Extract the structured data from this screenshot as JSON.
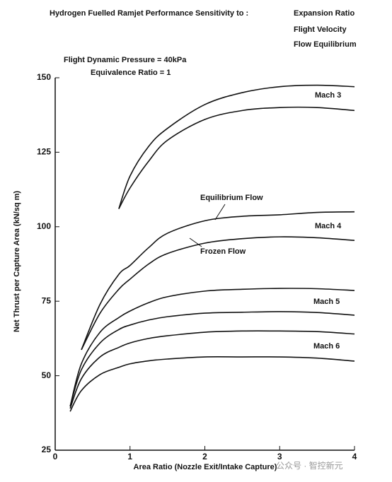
{
  "chart_data": {
    "type": "line",
    "title": "Hydrogen Fuelled Ramjet Performance  Sensitivity to :",
    "subtitle_lines": [
      "Expansion Ratio",
      "Flight Velocity",
      "Flow Equilibrium"
    ],
    "conditions": [
      "Flight Dynamic Pressure = 40kPa",
      "Equivalence Ratio = 1"
    ],
    "x_label": "Area Ratio (Nozzle Exit/Intake Capture)",
    "y_label": "Net Thrust per Capture Area (kN/sq m)",
    "x": [
      0.2,
      0.35,
      0.6,
      0.85,
      1.0,
      1.25,
      1.5,
      2.0,
      2.5,
      3.0,
      3.5,
      4.0
    ],
    "series": [
      {
        "color": "#111111",
        "values": [
          null,
          null,
          null,
          106,
          117,
          127,
          133,
          141,
          145,
          147,
          147.5,
          147
        ]
      },
      {
        "color": "#111111",
        "values": [
          null,
          null,
          null,
          106,
          113,
          122,
          129,
          136,
          139,
          140,
          140,
          139
        ]
      },
      {
        "color": "#111111",
        "values": [
          null,
          58.7,
          74,
          84,
          87,
          93,
          97.8,
          102,
          103.5,
          104,
          104.8,
          105
        ]
      },
      {
        "color": "#111111",
        "values": [
          null,
          58.7,
          71,
          79,
          82.4,
          87.5,
          91,
          94.5,
          96,
          96.6,
          96.3,
          95.4
        ]
      },
      {
        "color": "#111111",
        "values": [
          39.7,
          54,
          64.6,
          69.5,
          71.7,
          74.5,
          76.5,
          78.4,
          79,
          79.3,
          79.2,
          78.6
        ]
      },
      {
        "color": "#111111",
        "values": [
          39.7,
          52,
          61,
          65.5,
          67,
          68.7,
          69.8,
          71,
          71.3,
          71.5,
          71.2,
          70.3
        ]
      },
      {
        "color": "#111111",
        "values": [
          39,
          49,
          56.3,
          59.5,
          61,
          62.5,
          63.4,
          64.6,
          65,
          65,
          64.8,
          64
        ]
      },
      {
        "color": "#111111",
        "values": [
          38,
          45,
          50.4,
          52.8,
          54,
          55,
          55.6,
          56.3,
          56.3,
          56.3,
          55.9,
          54.9
        ]
      }
    ],
    "annotations": [
      "Mach 3",
      "Mach 4",
      "Mach 5",
      "Mach 6",
      "Equilibrium Flow",
      "Frozen Flow"
    ],
    "watermark": "公众号 · 智控新元",
    "xlim": [
      0,
      4
    ],
    "xticks": [
      0,
      1,
      2,
      3,
      4
    ],
    "ylim": [
      25,
      150
    ],
    "yticks": [
      25,
      50,
      75,
      100,
      125,
      150
    ],
    "grid": false
  }
}
